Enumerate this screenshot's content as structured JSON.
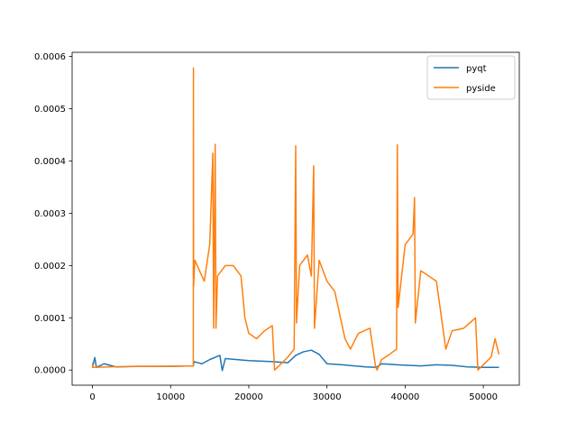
{
  "chart_data": {
    "type": "line",
    "title": "",
    "xlabel": "",
    "ylabel": "",
    "xlim": [
      -2600,
      54600
    ],
    "ylim": [
      -2.9e-05,
      0.000608
    ],
    "xticks": [
      0,
      10000,
      20000,
      30000,
      40000,
      50000
    ],
    "xtick_labels": [
      "0",
      "10000",
      "20000",
      "30000",
      "40000",
      "50000"
    ],
    "yticks": [
      0.0,
      0.0001,
      0.0002,
      0.0003,
      0.0004,
      0.0005,
      0.0006
    ],
    "ytick_labels": [
      "0.0000",
      "0.0001",
      "0.0002",
      "0.0003",
      "0.0004",
      "0.0005",
      "0.0006"
    ],
    "grid": false,
    "legend_position": "upper right",
    "series": [
      {
        "name": "pyqt",
        "color": "#1f77b4",
        "points": [
          [
            0,
            4.5e-06
          ],
          [
            300,
            2.4e-05
          ],
          [
            500,
            5e-06
          ],
          [
            1500,
            1.2e-05
          ],
          [
            3000,
            6e-06
          ],
          [
            6000,
            7e-06
          ],
          [
            10000,
            7e-06
          ],
          [
            12900,
            8e-06
          ],
          [
            13000,
            1.6e-05
          ],
          [
            14000,
            1.2e-05
          ],
          [
            15000,
            2e-05
          ],
          [
            16300,
            2.8e-05
          ],
          [
            16600,
            -1e-06
          ],
          [
            17000,
            2.2e-05
          ],
          [
            20000,
            1.8e-05
          ],
          [
            23000,
            1.6e-05
          ],
          [
            25000,
            1.4e-05
          ],
          [
            26000,
            2.8e-05
          ],
          [
            27000,
            3.5e-05
          ],
          [
            28000,
            3.8e-05
          ],
          [
            29000,
            3e-05
          ],
          [
            30000,
            1.2e-05
          ],
          [
            32000,
            1e-05
          ],
          [
            35000,
            6e-06
          ],
          [
            36300,
            5e-06
          ],
          [
            37000,
            1.2e-05
          ],
          [
            39000,
            1e-05
          ],
          [
            42000,
            8e-06
          ],
          [
            44000,
            1e-05
          ],
          [
            46000,
            9e-06
          ],
          [
            48000,
            6e-06
          ],
          [
            50000,
            5e-06
          ],
          [
            52000,
            5e-06
          ]
        ]
      },
      {
        "name": "pyside",
        "color": "#ff7f0e",
        "points": [
          [
            0,
            1.4e-05
          ],
          [
            50,
            5e-06
          ],
          [
            2000,
            6e-06
          ],
          [
            5000,
            7e-06
          ],
          [
            8000,
            7e-06
          ],
          [
            12900,
            8e-06
          ],
          [
            12920,
            0.000578
          ],
          [
            12940,
            0.00016
          ],
          [
            13100,
            0.00021
          ],
          [
            14300,
            0.00017
          ],
          [
            15000,
            0.00024
          ],
          [
            15400,
            0.000415
          ],
          [
            15500,
            8e-05
          ],
          [
            15700,
            0.000432
          ],
          [
            15800,
            8e-05
          ],
          [
            16000,
            0.00018
          ],
          [
            17000,
            0.0002
          ],
          [
            18000,
            0.0002
          ],
          [
            19000,
            0.00018
          ],
          [
            19500,
            0.0001
          ],
          [
            20000,
            7e-05
          ],
          [
            21000,
            6e-05
          ],
          [
            22000,
            7.5e-05
          ],
          [
            23000,
            8.5e-05
          ],
          [
            23300,
            0.0
          ],
          [
            24000,
            1e-05
          ],
          [
            25000,
            2.5e-05
          ],
          [
            25800,
            4e-05
          ],
          [
            26000,
            0.000429
          ],
          [
            26100,
            9e-05
          ],
          [
            26500,
            0.0002
          ],
          [
            27500,
            0.00022
          ],
          [
            28000,
            0.00018
          ],
          [
            28300,
            0.000391
          ],
          [
            28400,
            8e-05
          ],
          [
            29000,
            0.00021
          ],
          [
            30000,
            0.00017
          ],
          [
            31000,
            0.00015
          ],
          [
            32300,
            6e-05
          ],
          [
            33000,
            4e-05
          ],
          [
            34000,
            7e-05
          ],
          [
            35500,
            8e-05
          ],
          [
            36200,
            8e-06
          ],
          [
            36400,
            0.0
          ],
          [
            37000,
            2e-05
          ],
          [
            38000,
            3e-05
          ],
          [
            38900,
            4e-05
          ],
          [
            39000,
            0.000431
          ],
          [
            39100,
            0.00012
          ],
          [
            40000,
            0.00024
          ],
          [
            41000,
            0.00026
          ],
          [
            41200,
            0.00033
          ],
          [
            41300,
            9e-05
          ],
          [
            42000,
            0.00019
          ],
          [
            44000,
            0.00017
          ],
          [
            45200,
            4e-05
          ],
          [
            46000,
            7.5e-05
          ],
          [
            47500,
            8e-05
          ],
          [
            49000,
            0.0001
          ],
          [
            49300,
            0.0
          ],
          [
            50000,
            1e-05
          ],
          [
            51000,
            2.5e-05
          ],
          [
            51500,
            6e-05
          ],
          [
            52000,
            3e-05
          ]
        ]
      }
    ]
  }
}
